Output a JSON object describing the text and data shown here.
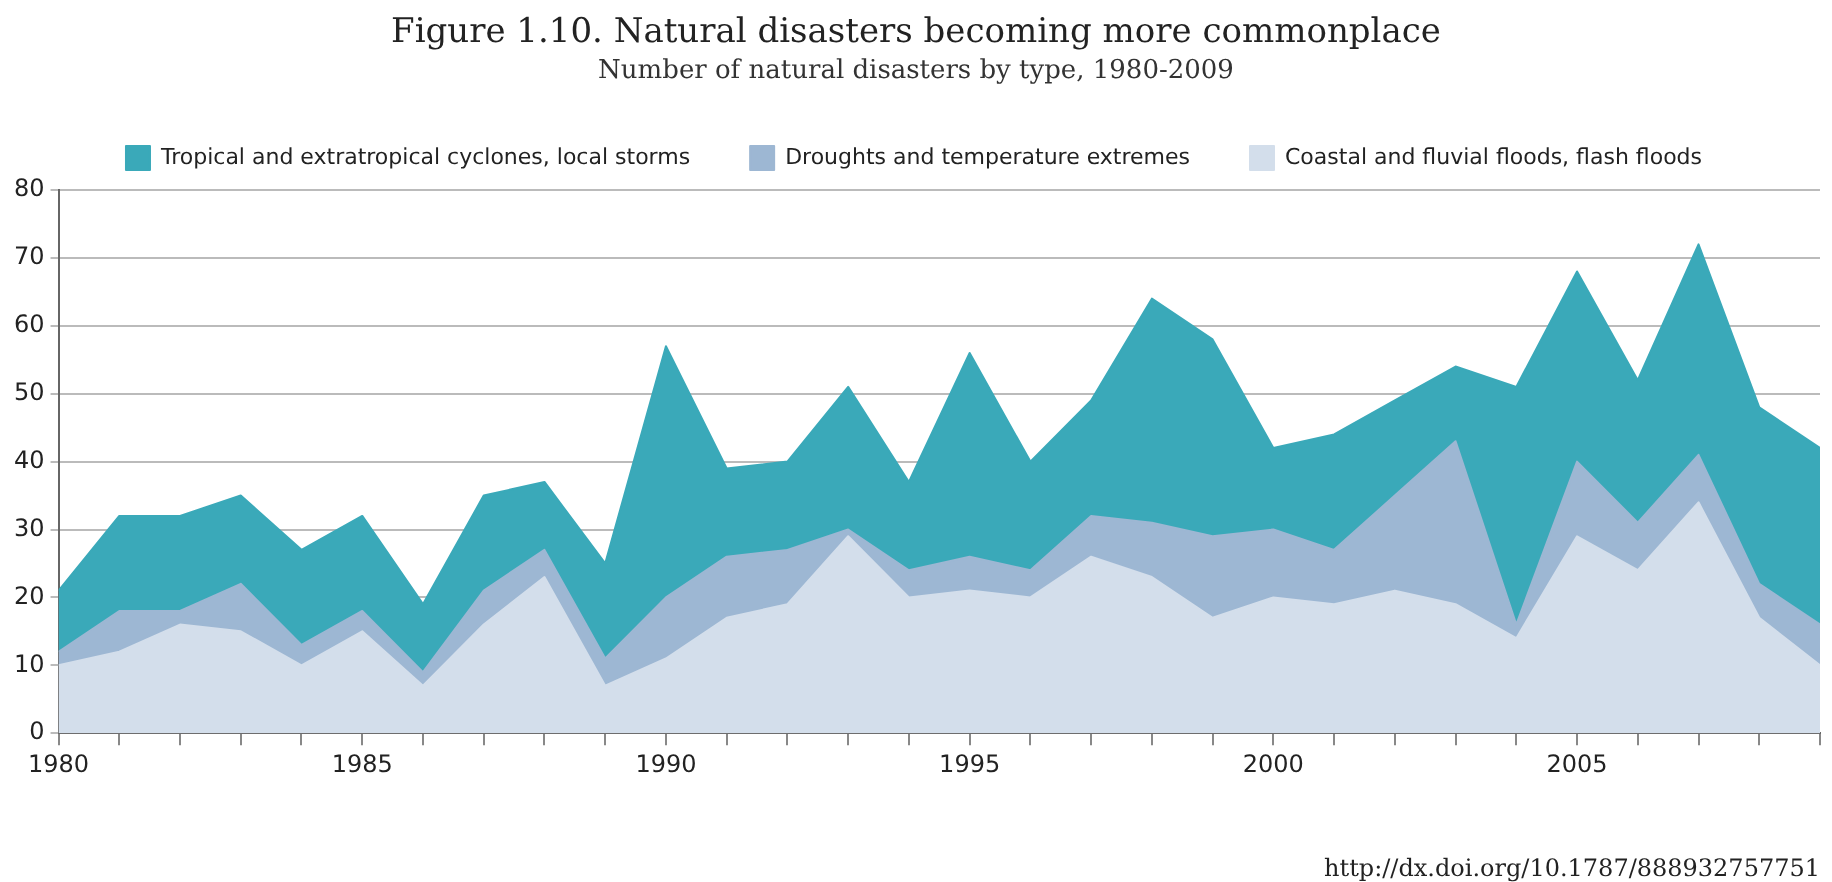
{
  "chart_data": {
    "type": "area",
    "stacked": true,
    "title": "Figure 1.10. Natural disasters becoming more commonplace",
    "subtitle": "Number of natural disasters by type, 1980-2009",
    "x": [
      1980,
      1981,
      1982,
      1983,
      1984,
      1985,
      1986,
      1987,
      1988,
      1989,
      1990,
      1991,
      1992,
      1993,
      1994,
      1995,
      1996,
      1997,
      1998,
      1999,
      2000,
      2001,
      2002,
      2003,
      2004,
      2005,
      2006,
      2007,
      2008,
      2009
    ],
    "series": [
      {
        "name": "Coastal and fluvial floods, flash floods",
        "color": "#d3deeb",
        "values": [
          10,
          12,
          16,
          15,
          10,
          15,
          7,
          16,
          23,
          7,
          11,
          17,
          19,
          29,
          20,
          21,
          20,
          26,
          23,
          17,
          20,
          19,
          21,
          19,
          14,
          29,
          24,
          34,
          17,
          10
        ]
      },
      {
        "name": "Droughts and temperature extremes",
        "color": "#9db7d3",
        "values": [
          2,
          6,
          2,
          7,
          3,
          3,
          2,
          5,
          4,
          4,
          9,
          9,
          8,
          1,
          4,
          5,
          4,
          6,
          8,
          12,
          10,
          8,
          14,
          24,
          2,
          11,
          7,
          7,
          5,
          6
        ]
      },
      {
        "name": "Tropical and extratropical cyclones, local storms",
        "color": "#3aa9b9",
        "values": [
          9,
          14,
          14,
          13,
          14,
          14,
          10,
          14,
          10,
          14,
          37,
          13,
          13,
          21,
          13,
          30,
          16,
          17,
          33,
          29,
          12,
          17,
          14,
          11,
          35,
          28,
          21,
          31,
          26,
          26
        ]
      }
    ],
    "xlim": [
      1980,
      2009
    ],
    "xticks": [
      1980,
      {
        "value": 1981,
        "label": null
      },
      {
        "value": 1982,
        "label": null
      },
      {
        "value": 1983,
        "label": null
      },
      {
        "value": 1984,
        "label": null
      },
      1985,
      {
        "value": 1986,
        "label": null
      },
      {
        "value": 1987,
        "label": null
      },
      {
        "value": 1988,
        "label": null
      },
      {
        "value": 1989,
        "label": null
      },
      1990,
      {
        "value": 1991,
        "label": null
      },
      {
        "value": 1992,
        "label": null
      },
      {
        "value": 1993,
        "label": null
      },
      {
        "value": 1994,
        "label": null
      },
      1995,
      {
        "value": 1996,
        "label": null
      },
      {
        "value": 1997,
        "label": null
      },
      {
        "value": 1998,
        "label": null
      },
      {
        "value": 1999,
        "label": null
      },
      2000,
      {
        "value": 2001,
        "label": null
      },
      {
        "value": 2002,
        "label": null
      },
      {
        "value": 2003,
        "label": null
      },
      {
        "value": 2004,
        "label": null
      },
      2005,
      {
        "value": 2006,
        "label": null
      },
      {
        "value": 2007,
        "label": null
      },
      {
        "value": 2008,
        "label": null
      },
      {
        "value": 2009,
        "label": null
      }
    ],
    "ylim": [
      0,
      80
    ],
    "yticks": [
      0,
      10,
      20,
      30,
      40,
      50,
      60,
      70,
      80
    ],
    "grid": "y",
    "legend": "top",
    "marker": "none",
    "annotations": [
      "http://dx.doi.org/10.1787/888932757751"
    ]
  }
}
